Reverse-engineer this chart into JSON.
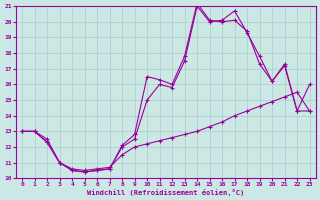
{
  "xlabel": "Windchill (Refroidissement éolien,°C)",
  "bg_color": "#cce8e5",
  "grid_color": "#aacccc",
  "line_color": "#990099",
  "xlim": [
    0,
    23
  ],
  "ylim": [
    10,
    21
  ],
  "yticks": [
    10,
    11,
    12,
    13,
    14,
    15,
    16,
    17,
    18,
    19,
    20,
    21
  ],
  "xticks": [
    0,
    1,
    2,
    3,
    4,
    5,
    6,
    7,
    8,
    9,
    10,
    11,
    12,
    13,
    14,
    15,
    16,
    17,
    18,
    19,
    20,
    21,
    22,
    23
  ],
  "line1_x": [
    0,
    1,
    2,
    3,
    4,
    5,
    6,
    7,
    8,
    9,
    10,
    11,
    12,
    13,
    14,
    15,
    16,
    17,
    18,
    19,
    20,
    21,
    22,
    23
  ],
  "line1_y": [
    13.0,
    13.0,
    12.5,
    11.0,
    10.6,
    10.5,
    10.6,
    10.7,
    11.5,
    12.0,
    12.2,
    12.4,
    12.6,
    12.8,
    13.0,
    13.3,
    13.6,
    14.0,
    14.3,
    14.6,
    14.9,
    15.2,
    15.5,
    14.3
  ],
  "line2_x": [
    0,
    1,
    2,
    3,
    4,
    5,
    6,
    7,
    8,
    9,
    10,
    11,
    12,
    13,
    14,
    15,
    16,
    17,
    18,
    19,
    20,
    21,
    22,
    23
  ],
  "line2_y": [
    13.0,
    13.0,
    12.3,
    11.0,
    10.5,
    10.4,
    10.5,
    10.6,
    12.0,
    12.5,
    15.0,
    16.0,
    15.8,
    17.5,
    21.0,
    20.0,
    20.1,
    20.7,
    19.3,
    17.8,
    16.2,
    17.3,
    14.3,
    16.0
  ],
  "line3_x": [
    0,
    1,
    2,
    3,
    4,
    5,
    6,
    7,
    8,
    9,
    10,
    11,
    12,
    13,
    14,
    15,
    16,
    17,
    18,
    19,
    20,
    21,
    22,
    23
  ],
  "line3_y": [
    13.0,
    13.0,
    12.3,
    11.0,
    10.5,
    10.4,
    10.5,
    10.6,
    12.1,
    12.8,
    16.5,
    16.3,
    16.0,
    17.8,
    21.2,
    20.1,
    20.0,
    20.1,
    19.4,
    17.3,
    16.2,
    17.2,
    14.3,
    14.3
  ]
}
